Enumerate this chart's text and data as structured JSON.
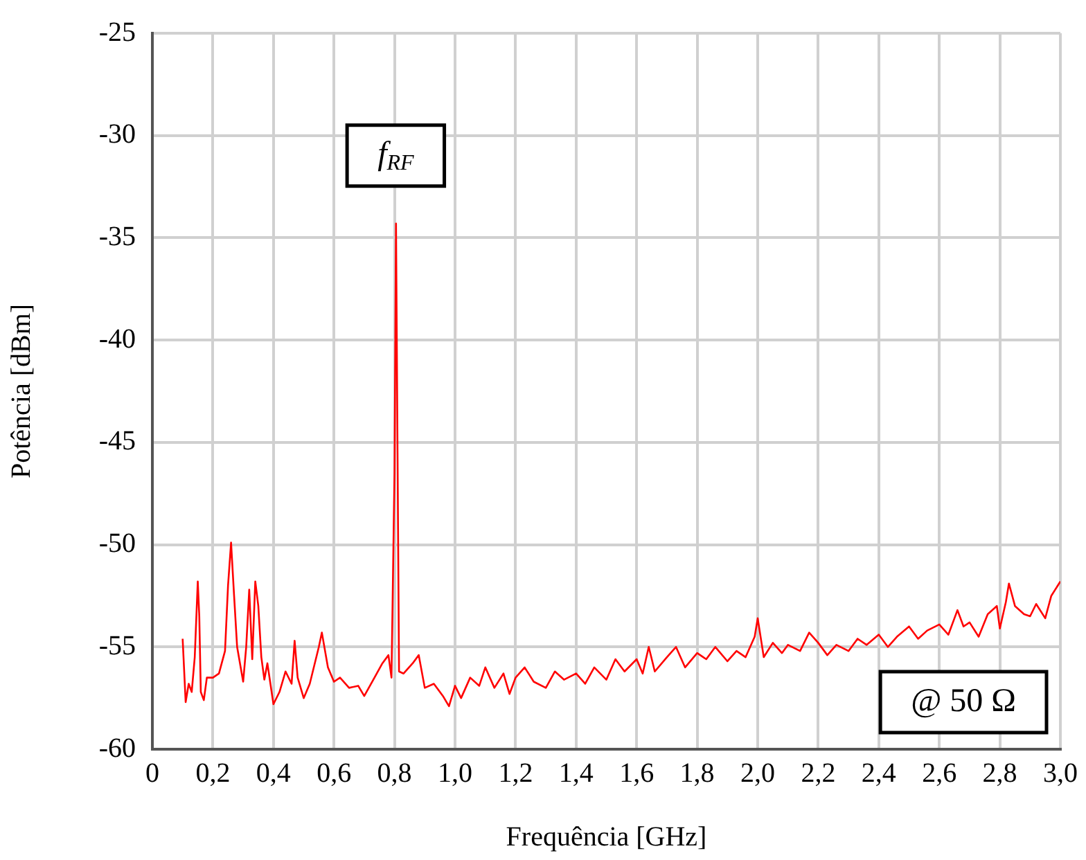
{
  "chart_data": {
    "type": "line",
    "xlabel": "Frequência [GHz]",
    "ylabel": "Potência [dBm]",
    "x": [
      0.1,
      0.11,
      0.12,
      0.13,
      0.14,
      0.15,
      0.155,
      0.16,
      0.17,
      0.18,
      0.2,
      0.22,
      0.24,
      0.25,
      0.26,
      0.27,
      0.28,
      0.3,
      0.31,
      0.32,
      0.33,
      0.34,
      0.35,
      0.36,
      0.37,
      0.38,
      0.4,
      0.42,
      0.44,
      0.46,
      0.47,
      0.48,
      0.5,
      0.52,
      0.55,
      0.56,
      0.58,
      0.6,
      0.62,
      0.65,
      0.68,
      0.7,
      0.73,
      0.76,
      0.78,
      0.79,
      0.8,
      0.805,
      0.81,
      0.815,
      0.83,
      0.86,
      0.88,
      0.9,
      0.93,
      0.96,
      0.98,
      1.0,
      1.02,
      1.05,
      1.08,
      1.1,
      1.13,
      1.16,
      1.18,
      1.2,
      1.23,
      1.26,
      1.3,
      1.33,
      1.36,
      1.4,
      1.43,
      1.46,
      1.5,
      1.53,
      1.56,
      1.6,
      1.62,
      1.64,
      1.66,
      1.7,
      1.73,
      1.76,
      1.8,
      1.83,
      1.86,
      1.9,
      1.93,
      1.96,
      1.99,
      2.0,
      2.02,
      2.05,
      2.08,
      2.1,
      2.14,
      2.17,
      2.2,
      2.23,
      2.26,
      2.3,
      2.33,
      2.36,
      2.4,
      2.43,
      2.46,
      2.5,
      2.53,
      2.56,
      2.6,
      2.63,
      2.66,
      2.68,
      2.7,
      2.73,
      2.76,
      2.79,
      2.8,
      2.82,
      2.83,
      2.85,
      2.88,
      2.9,
      2.92,
      2.95,
      2.97,
      3.0
    ],
    "series": [
      {
        "color": "#ff0000",
        "values": [
          -54.6,
          -57.7,
          -56.8,
          -57.2,
          -55.5,
          -51.8,
          -53.5,
          -57.2,
          -57.6,
          -56.5,
          -56.5,
          -56.3,
          -55.2,
          -52.0,
          -49.9,
          -52.5,
          -55.0,
          -56.7,
          -55.0,
          -52.2,
          -55.6,
          -51.8,
          -53.0,
          -55.5,
          -56.6,
          -55.8,
          -57.8,
          -57.2,
          -56.2,
          -56.8,
          -54.7,
          -56.5,
          -57.5,
          -56.8,
          -55.0,
          -54.3,
          -56.0,
          -56.7,
          -56.5,
          -57.0,
          -56.9,
          -57.4,
          -56.6,
          -55.8,
          -55.4,
          -56.5,
          -46.5,
          -34.3,
          -45.5,
          -56.2,
          -56.3,
          -55.8,
          -55.4,
          -57.0,
          -56.8,
          -57.4,
          -57.9,
          -56.9,
          -57.5,
          -56.5,
          -56.9,
          -56.0,
          -57.0,
          -56.3,
          -57.3,
          -56.5,
          -56.0,
          -56.7,
          -57.0,
          -56.2,
          -56.6,
          -56.3,
          -56.8,
          -56.0,
          -56.6,
          -55.6,
          -56.2,
          -55.6,
          -56.3,
          -55.0,
          -56.2,
          -55.5,
          -55.0,
          -56.0,
          -55.3,
          -55.6,
          -55.0,
          -55.7,
          -55.2,
          -55.5,
          -54.5,
          -53.6,
          -55.5,
          -54.8,
          -55.3,
          -54.9,
          -55.2,
          -54.3,
          -54.8,
          -55.4,
          -54.9,
          -55.2,
          -54.6,
          -54.9,
          -54.4,
          -55.0,
          -54.5,
          -54.0,
          -54.6,
          -54.2,
          -53.9,
          -54.4,
          -53.2,
          -54.0,
          -53.8,
          -54.5,
          -53.4,
          -53.0,
          -54.1,
          -52.8,
          -51.9,
          -53.0,
          -53.4,
          -53.5,
          -52.9,
          -53.6,
          -52.5,
          -51.8
        ]
      }
    ],
    "xlim": [
      0,
      3.0
    ],
    "xticks": [
      0,
      {
        "value": 0.2,
        "label": "0,2"
      },
      {
        "value": 0.4,
        "label": "0,4"
      },
      {
        "value": 0.6,
        "label": "0,6"
      },
      {
        "value": 0.8,
        "label": "0,8"
      },
      {
        "value": 1.0,
        "label": "1,0"
      },
      {
        "value": 1.2,
        "label": "1,2"
      },
      {
        "value": 1.4,
        "label": "1,4"
      },
      {
        "value": 1.6,
        "label": "1,6"
      },
      {
        "value": 1.8,
        "label": "1,8"
      },
      {
        "value": 2.0,
        "label": "2,0"
      },
      {
        "value": 2.2,
        "label": "2,2"
      },
      {
        "value": 2.4,
        "label": "2,4"
      },
      {
        "value": 2.6,
        "label": "2,6"
      },
      {
        "value": 2.8,
        "label": "2,8"
      },
      {
        "value": 3.0,
        "label": "3,0"
      }
    ],
    "ylim": [
      -60,
      -25
    ],
    "yticks": [
      -60,
      -55,
      -50,
      -45,
      -40,
      -35,
      -30,
      -25
    ],
    "annotations": [
      "f$_{RF}$",
      "@ 50 Ω"
    ],
    "grid": true,
    "legend": false,
    "marker": "none",
    "line_style": "solid"
  }
}
